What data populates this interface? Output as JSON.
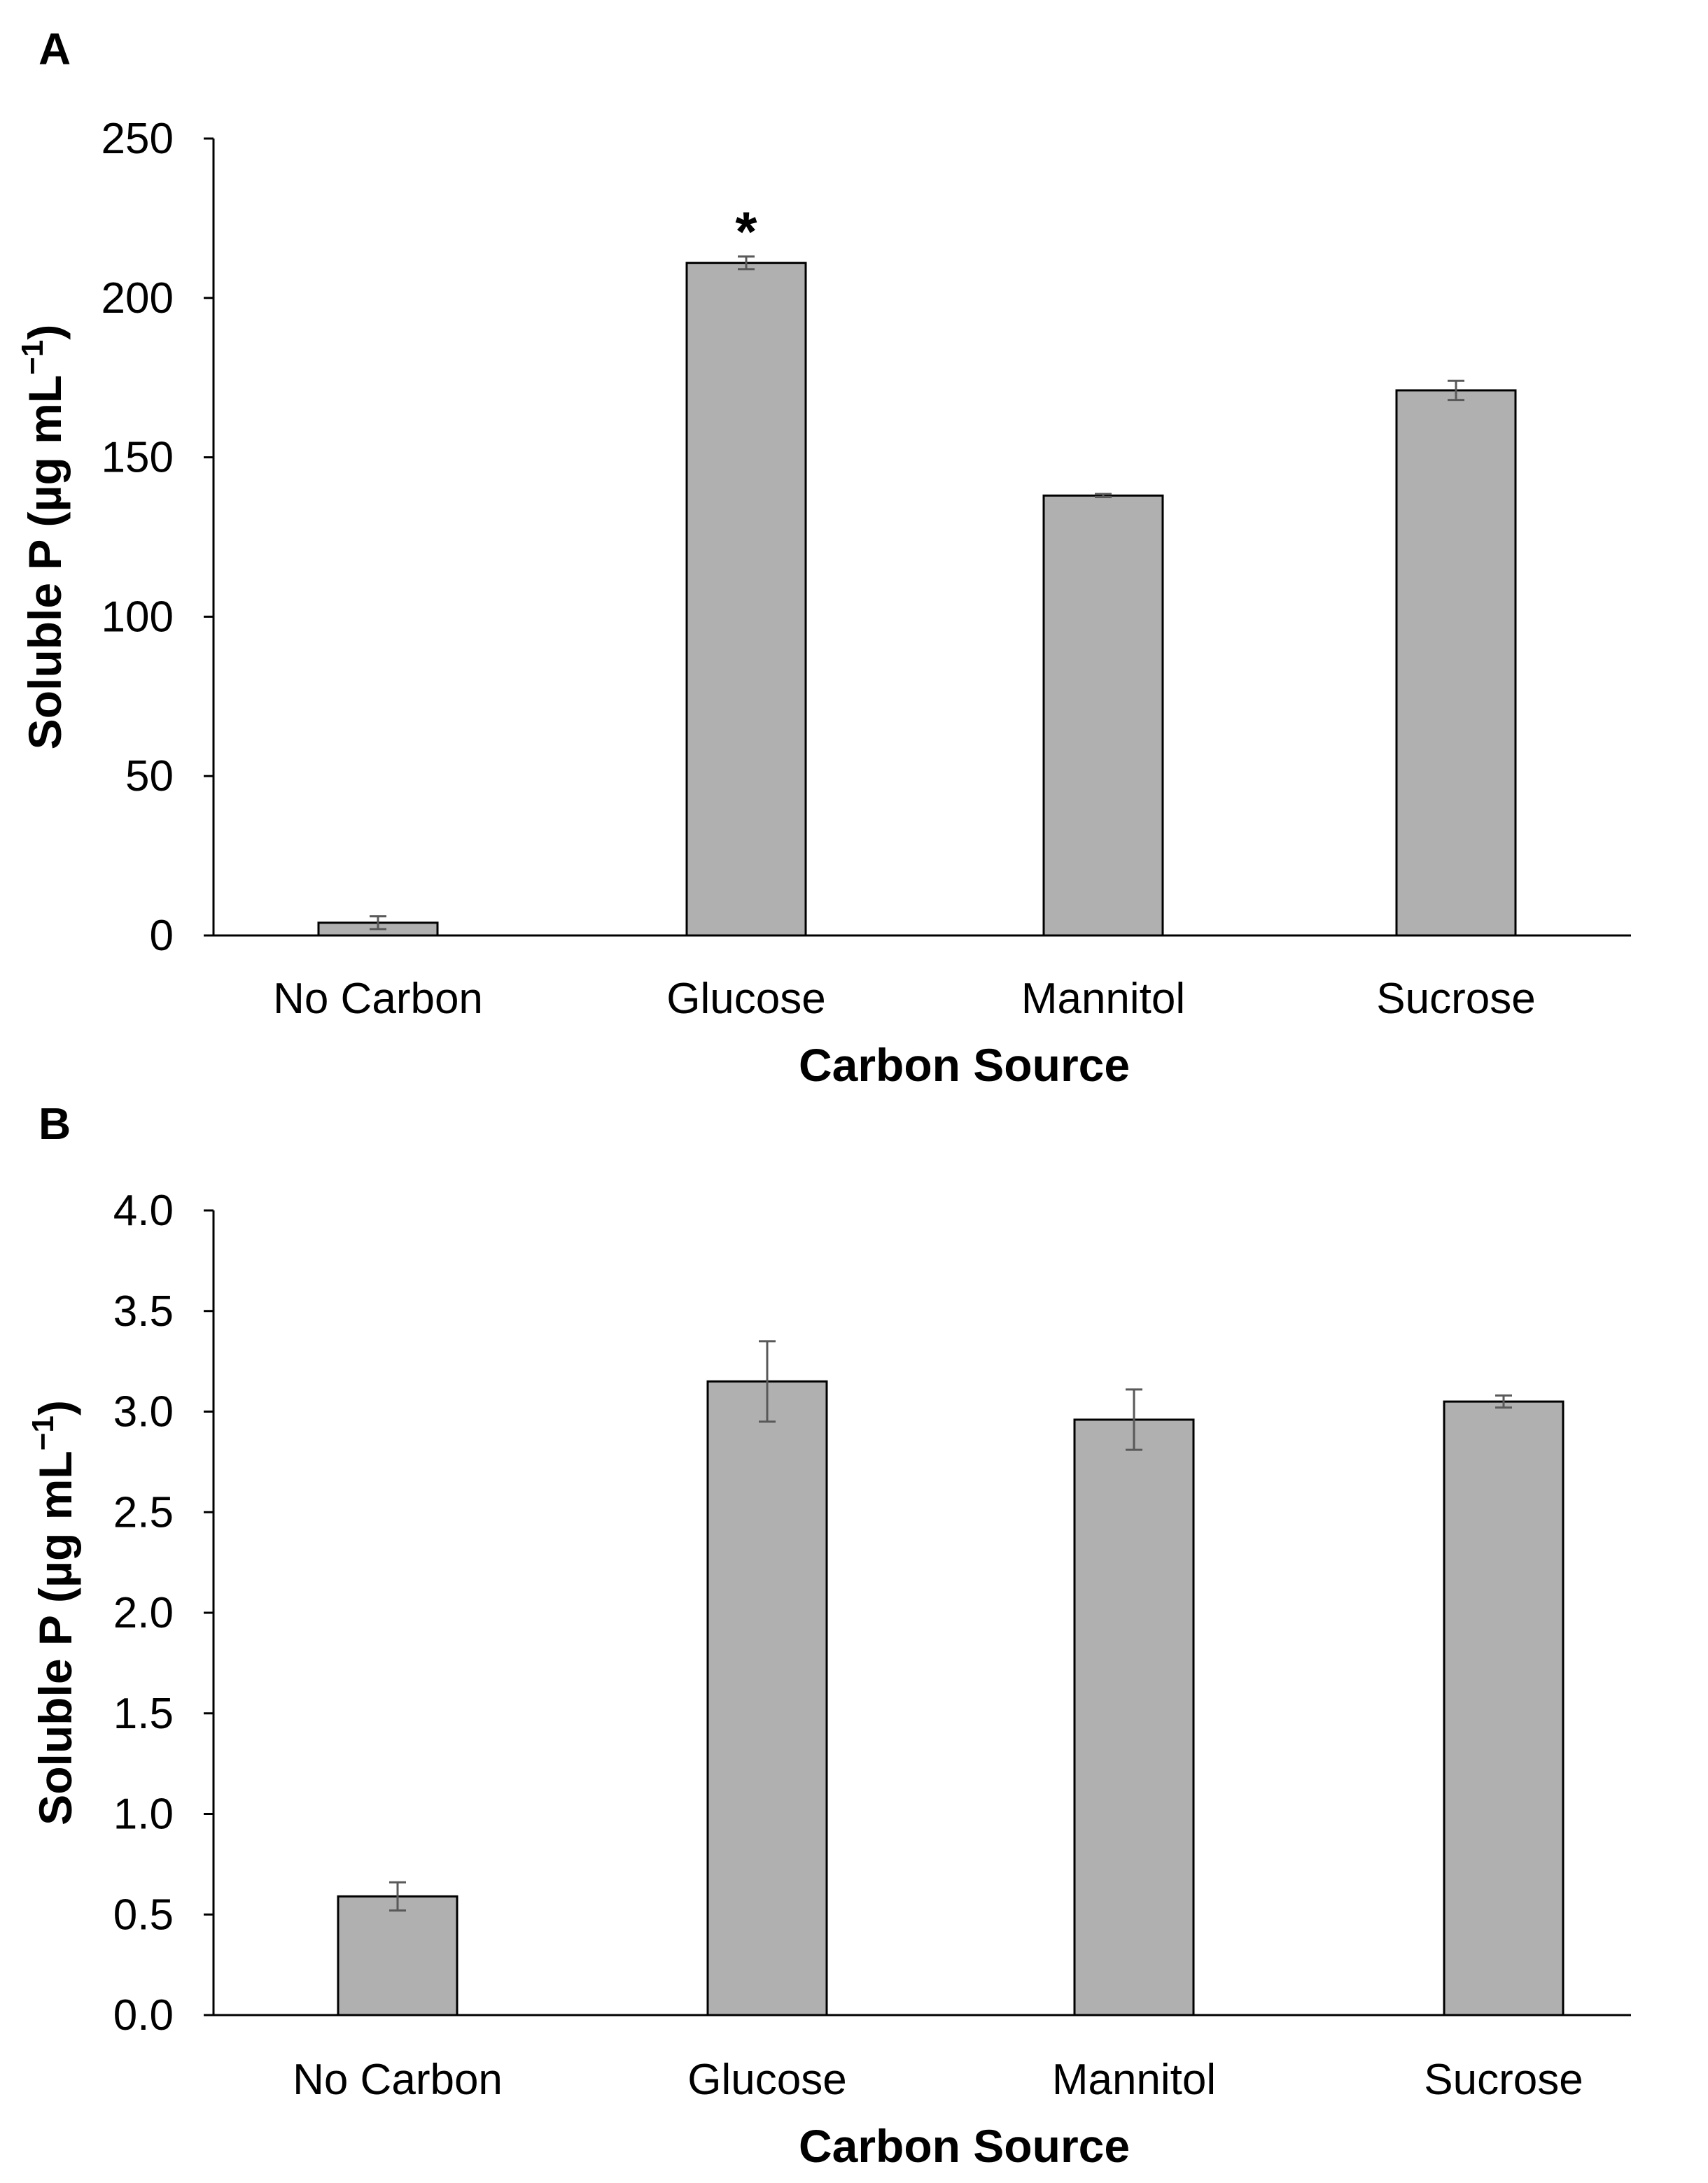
{
  "chart_data": [
    {
      "type": "bar",
      "panel_label": "A",
      "categories": [
        "No Carbon",
        "Glucose",
        "Mannitol",
        "Sucrose"
      ],
      "values": [
        4,
        211,
        138,
        171
      ],
      "errors": [
        2,
        2,
        0.5,
        3
      ],
      "annotations": [
        "",
        "*",
        "",
        ""
      ],
      "xlabel": "Carbon Source",
      "ylabel": "Soluble P (µg mL",
      "ylabel_sup": "−1",
      "ylabel_close": ")",
      "ylim": [
        0,
        250
      ],
      "yticks": [
        "0",
        "50",
        "100",
        "150",
        "200",
        "250"
      ],
      "grid": false,
      "bar_color": "#b0b0b0"
    },
    {
      "type": "bar",
      "panel_label": "B",
      "categories": [
        "No Carbon",
        "Glucose",
        "Mannitol",
        "Sucrose"
      ],
      "values": [
        0.59,
        3.15,
        2.96,
        3.05
      ],
      "errors": [
        0.07,
        0.2,
        0.15,
        0.03
      ],
      "annotations": [
        "",
        "",
        "",
        ""
      ],
      "xlabel": "Carbon Source",
      "ylabel": "Soluble P (µg mL",
      "ylabel_sup": "−1",
      "ylabel_close": ")",
      "ylim": [
        0,
        4
      ],
      "yticks": [
        "0.0",
        "0.5",
        "1.0",
        "1.5",
        "2.0",
        "2.5",
        "3.0",
        "3.5",
        "4.0"
      ],
      "grid": false,
      "bar_color": "#b0b0b0"
    }
  ]
}
